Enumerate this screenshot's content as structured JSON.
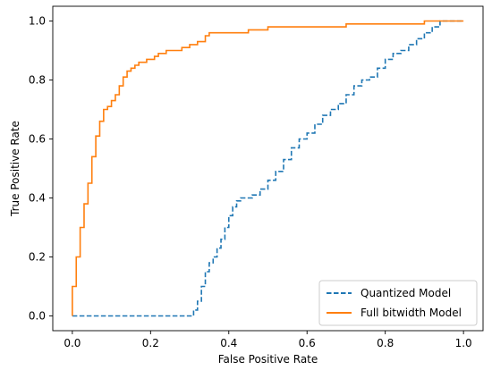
{
  "chart_data": {
    "type": "line",
    "title": "",
    "xlabel": "False Positive Rate",
    "ylabel": "True Positive Rate",
    "xlim": [
      -0.05,
      1.05
    ],
    "ylim": [
      -0.05,
      1.05
    ],
    "xticks": [
      0.0,
      0.2,
      0.4,
      0.6,
      0.8,
      1.0
    ],
    "yticks": [
      0.0,
      0.2,
      0.4,
      0.6,
      0.8,
      1.0
    ],
    "xtick_labels": [
      "0.0",
      "0.2",
      "0.4",
      "0.6",
      "0.8",
      "1.0"
    ],
    "ytick_labels": [
      "0.0",
      "0.2",
      "0.4",
      "0.6",
      "0.8",
      "1.0"
    ],
    "grid": false,
    "legend_position": "bottom-right",
    "series": [
      {
        "name": "Quantized Model",
        "color": "#1f77b4",
        "style": "dashed",
        "x": [
          0.0,
          0.3,
          0.31,
          0.32,
          0.33,
          0.34,
          0.35,
          0.36,
          0.37,
          0.38,
          0.39,
          0.4,
          0.41,
          0.42,
          0.43,
          0.44,
          0.46,
          0.48,
          0.5,
          0.52,
          0.54,
          0.56,
          0.58,
          0.6,
          0.62,
          0.64,
          0.66,
          0.68,
          0.7,
          0.72,
          0.74,
          0.76,
          0.78,
          0.8,
          0.82,
          0.84,
          0.86,
          0.88,
          0.9,
          0.92,
          0.94,
          0.96,
          1.0
        ],
        "y": [
          0.0,
          0.0,
          0.02,
          0.05,
          0.1,
          0.15,
          0.18,
          0.2,
          0.23,
          0.26,
          0.3,
          0.34,
          0.37,
          0.39,
          0.4,
          0.4,
          0.41,
          0.43,
          0.46,
          0.49,
          0.53,
          0.57,
          0.6,
          0.62,
          0.65,
          0.68,
          0.7,
          0.72,
          0.75,
          0.78,
          0.8,
          0.81,
          0.84,
          0.87,
          0.89,
          0.9,
          0.92,
          0.94,
          0.96,
          0.98,
          1.0,
          1.0,
          1.0
        ]
      },
      {
        "name": "Full bitwidth Model",
        "color": "#ff7f0e",
        "style": "solid",
        "x": [
          0.0,
          0.0,
          0.01,
          0.01,
          0.02,
          0.02,
          0.03,
          0.03,
          0.04,
          0.04,
          0.05,
          0.05,
          0.06,
          0.06,
          0.07,
          0.07,
          0.08,
          0.08,
          0.09,
          0.1,
          0.11,
          0.12,
          0.13,
          0.14,
          0.15,
          0.16,
          0.17,
          0.18,
          0.19,
          0.2,
          0.21,
          0.22,
          0.24,
          0.26,
          0.28,
          0.3,
          0.32,
          0.34,
          0.35,
          0.36,
          0.4,
          0.45,
          0.5,
          0.55,
          0.6,
          0.7,
          0.8,
          0.85,
          0.9,
          0.95,
          1.0
        ],
        "y": [
          0.0,
          0.1,
          0.12,
          0.2,
          0.25,
          0.3,
          0.33,
          0.38,
          0.41,
          0.45,
          0.48,
          0.54,
          0.57,
          0.61,
          0.63,
          0.66,
          0.68,
          0.7,
          0.71,
          0.73,
          0.75,
          0.78,
          0.81,
          0.83,
          0.84,
          0.85,
          0.86,
          0.86,
          0.87,
          0.87,
          0.88,
          0.89,
          0.9,
          0.9,
          0.91,
          0.92,
          0.93,
          0.95,
          0.96,
          0.96,
          0.96,
          0.97,
          0.98,
          0.98,
          0.98,
          0.99,
          0.99,
          0.99,
          1.0,
          1.0,
          1.0
        ]
      }
    ]
  }
}
